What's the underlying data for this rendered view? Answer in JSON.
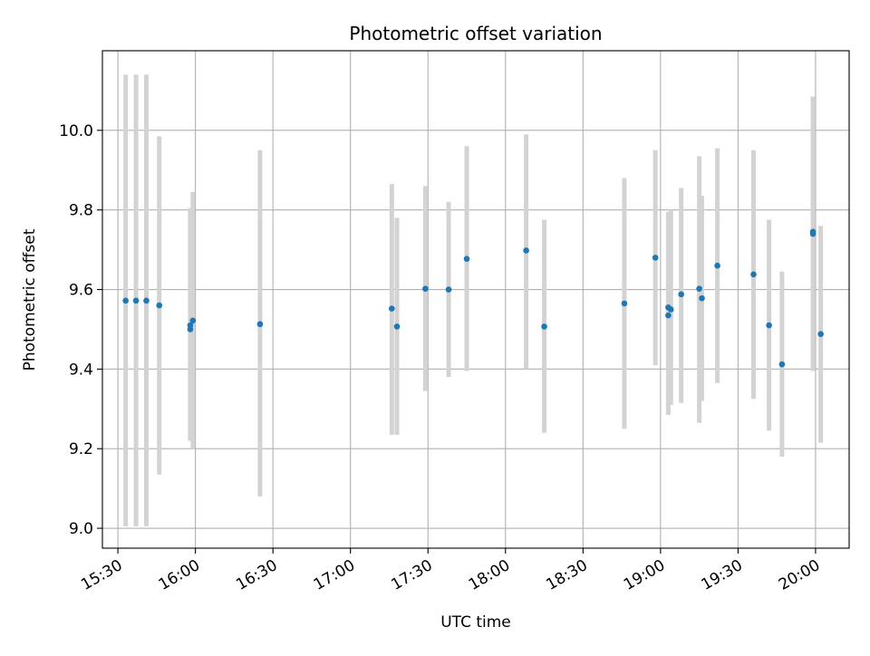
{
  "chart_data": {
    "type": "scatter",
    "title": "Photometric offset variation",
    "xlabel": "UTC time",
    "ylabel": "Photometric offset",
    "x_ticks": [
      "15:30",
      "16:00",
      "16:30",
      "17:00",
      "17:30",
      "18:00",
      "18:30",
      "19:00",
      "19:30",
      "20:00"
    ],
    "y_ticks": [
      "9.0",
      "9.2",
      "9.4",
      "9.6",
      "9.8",
      "10.0"
    ],
    "xlim": [
      "15:24",
      "20:13"
    ],
    "ylim": [
      8.95,
      10.2
    ],
    "grid": true,
    "colors": {
      "point": "#1f77b4",
      "errorbar": "#d3d3d3"
    },
    "points": [
      {
        "x": "15:33",
        "y": 9.572,
        "low": 9.005,
        "high": 10.14
      },
      {
        "x": "15:37",
        "y": 9.572,
        "low": 9.005,
        "high": 10.14
      },
      {
        "x": "15:41",
        "y": 9.572,
        "low": 9.005,
        "high": 10.14
      },
      {
        "x": "15:46",
        "y": 9.56,
        "low": 9.135,
        "high": 9.985
      },
      {
        "x": "15:58",
        "y": 9.51,
        "low": 9.22,
        "high": 9.805
      },
      {
        "x": "15:58",
        "y": 9.5,
        "low": 9.22,
        "high": 9.79
      },
      {
        "x": "15:59",
        "y": 9.522,
        "low": 9.2,
        "high": 9.845
      },
      {
        "x": "16:25",
        "y": 9.513,
        "low": 9.08,
        "high": 9.95
      },
      {
        "x": "17:16",
        "y": 9.552,
        "low": 9.235,
        "high": 9.865
      },
      {
        "x": "17:18",
        "y": 9.507,
        "low": 9.235,
        "high": 9.78
      },
      {
        "x": "17:29",
        "y": 9.602,
        "low": 9.345,
        "high": 9.86
      },
      {
        "x": "17:38",
        "y": 9.6,
        "low": 9.38,
        "high": 9.82
      },
      {
        "x": "17:45",
        "y": 9.677,
        "low": 9.395,
        "high": 9.96
      },
      {
        "x": "18:08",
        "y": 9.698,
        "low": 9.4,
        "high": 9.99
      },
      {
        "x": "18:15",
        "y": 9.507,
        "low": 9.24,
        "high": 9.775
      },
      {
        "x": "18:46",
        "y": 9.565,
        "low": 9.25,
        "high": 9.88
      },
      {
        "x": "18:58",
        "y": 9.68,
        "low": 9.41,
        "high": 9.95
      },
      {
        "x": "19:03",
        "y": 9.555,
        "low": 9.315,
        "high": 9.795
      },
      {
        "x": "19:03",
        "y": 9.535,
        "low": 9.285,
        "high": 9.785
      },
      {
        "x": "19:04",
        "y": 9.55,
        "low": 9.31,
        "high": 9.8
      },
      {
        "x": "19:08",
        "y": 9.588,
        "low": 9.315,
        "high": 9.855
      },
      {
        "x": "19:15",
        "y": 9.602,
        "low": 9.265,
        "high": 9.935
      },
      {
        "x": "19:16",
        "y": 9.578,
        "low": 9.32,
        "high": 9.835
      },
      {
        "x": "19:22",
        "y": 9.66,
        "low": 9.365,
        "high": 9.955
      },
      {
        "x": "19:36",
        "y": 9.638,
        "low": 9.325,
        "high": 9.95
      },
      {
        "x": "19:42",
        "y": 9.51,
        "low": 9.245,
        "high": 9.775
      },
      {
        "x": "19:47",
        "y": 9.412,
        "low": 9.18,
        "high": 9.645
      },
      {
        "x": "19:59",
        "y": 9.74,
        "low": 9.395,
        "high": 10.085
      },
      {
        "x": "19:59",
        "y": 9.745,
        "low": 9.395,
        "high": 10.085
      },
      {
        "x": "20:02",
        "y": 9.488,
        "low": 9.215,
        "high": 9.76
      }
    ]
  }
}
